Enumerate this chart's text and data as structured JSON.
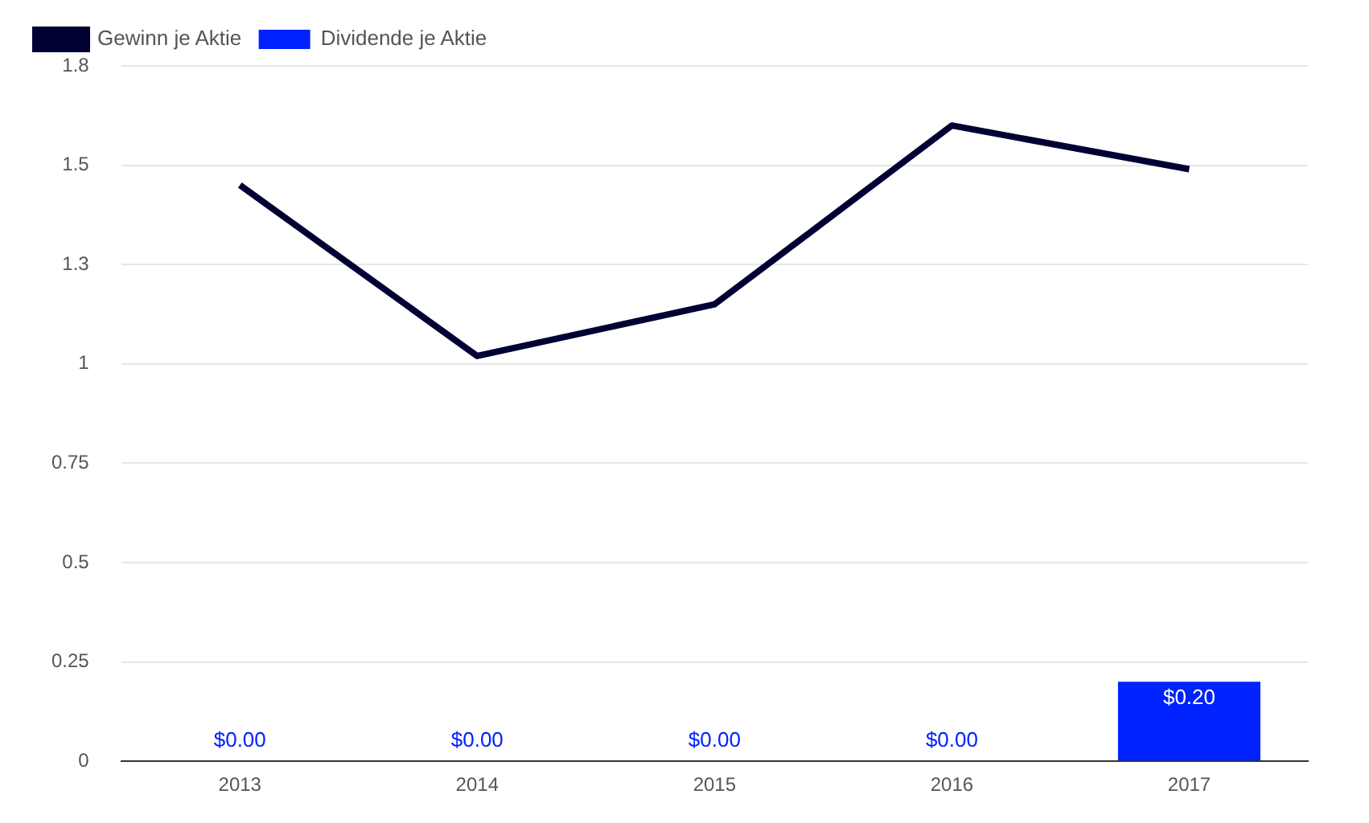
{
  "chart_data": {
    "type": "bar",
    "categories": [
      "2013",
      "2014",
      "2015",
      "2016",
      "2017"
    ],
    "series": [
      {
        "name": "Gewinn je Aktie",
        "type": "line",
        "color": "#000033",
        "values": [
          1.45,
          1.02,
          1.15,
          1.6,
          1.49
        ]
      },
      {
        "name": "Dividende je Aktie",
        "color": "#0022ff",
        "values": [
          0,
          0,
          0,
          0,
          0.2
        ],
        "value_labels": [
          "$0.00",
          "$0.00",
          "$0.00",
          "$0.00",
          "$0.20"
        ]
      }
    ],
    "ylim": [
      0,
      1.75
    ],
    "yticks": [
      0,
      0.25,
      0.5,
      0.75,
      1,
      {
        "value": 1.25,
        "label": "1.3"
      },
      1.5,
      {
        "value": 1.75,
        "label": "1.8"
      }
    ],
    "grid": "y",
    "legend": "top left",
    "marker": "none"
  }
}
